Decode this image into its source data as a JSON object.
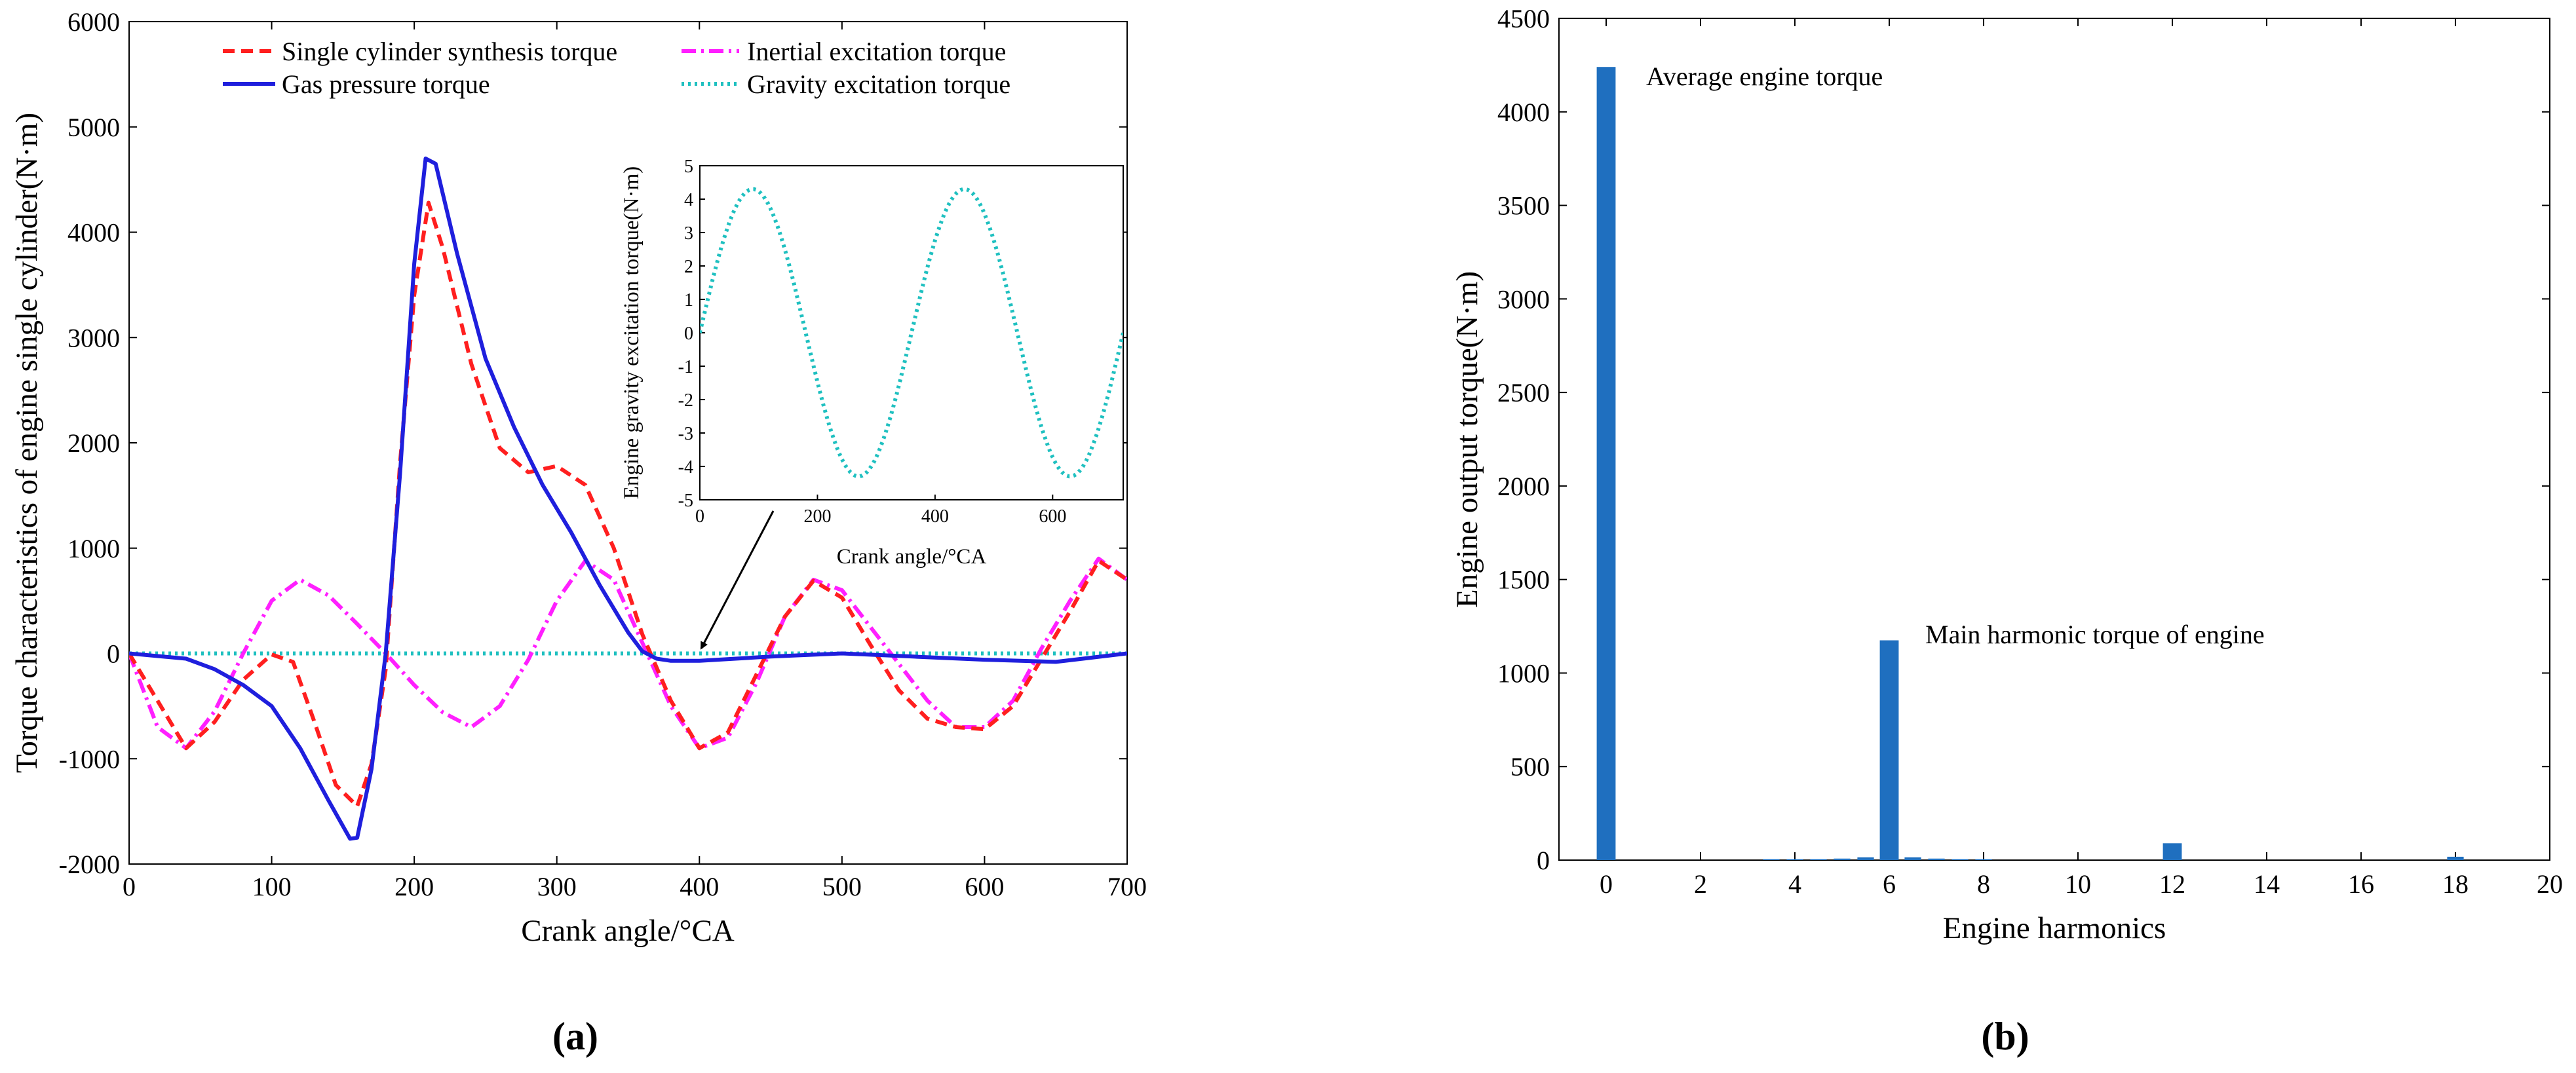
{
  "chart_data": [
    {
      "type": "line",
      "panel": "(a)",
      "xlabel": "Crank angle/°CA",
      "ylabel": "Torque characteristics of engine single cylinder(N·m)",
      "xlim": [
        0,
        700
      ],
      "ylim": [
        -2000,
        6000
      ],
      "xticks": [
        0,
        100,
        200,
        300,
        400,
        500,
        600,
        700
      ],
      "yticks": [
        -2000,
        -1000,
        0,
        1000,
        2000,
        3000,
        4000,
        5000,
        6000
      ],
      "legend": "top",
      "series": [
        {
          "name": "Single cylinder synthesis torque",
          "color": "#ff1f1f",
          "style": "dashed",
          "x": [
            0,
            20,
            40,
            60,
            80,
            100,
            115,
            130,
            145,
            160,
            170,
            180,
            190,
            200,
            210,
            220,
            240,
            260,
            280,
            300,
            320,
            340,
            360,
            380,
            400,
            420,
            440,
            460,
            480,
            500,
            520,
            540,
            560,
            580,
            600,
            620,
            640,
            660,
            680,
            700
          ],
          "values": [
            0,
            -450,
            -900,
            -650,
            -250,
            -10,
            -80,
            -650,
            -1250,
            -1450,
            -1050,
            -150,
            1800,
            3400,
            4280,
            3850,
            2750,
            1950,
            1720,
            1780,
            1600,
            1000,
            180,
            -450,
            -900,
            -750,
            -200,
            350,
            690,
            530,
            80,
            -350,
            -620,
            -700,
            -720,
            -500,
            -50,
            400,
            880,
            700
          ]
        },
        {
          "name": "Gas pressure torque",
          "color": "#1f1fdd",
          "style": "solid",
          "x": [
            0,
            40,
            60,
            80,
            100,
            120,
            140,
            155,
            160,
            170,
            180,
            190,
            200,
            208,
            215,
            230,
            250,
            270,
            290,
            310,
            330,
            350,
            360,
            370,
            380,
            400,
            450,
            500,
            550,
            600,
            650,
            700
          ],
          "values": [
            0,
            -50,
            -150,
            -300,
            -500,
            -900,
            -1400,
            -1760,
            -1750,
            -1100,
            0,
            1700,
            3700,
            4700,
            4650,
            3800,
            2800,
            2150,
            1600,
            1150,
            650,
            200,
            20,
            -50,
            -70,
            -70,
            -30,
            0,
            -30,
            -60,
            -80,
            0
          ]
        },
        {
          "name": "Inertial excitation torque",
          "color": "#ff1fff",
          "style": "dashdot",
          "x": [
            0,
            20,
            40,
            60,
            80,
            100,
            120,
            140,
            160,
            180,
            200,
            220,
            240,
            260,
            280,
            300,
            320,
            340,
            360,
            380,
            400,
            420,
            440,
            460,
            480,
            500,
            520,
            540,
            560,
            580,
            600,
            620,
            640,
            660,
            680,
            700
          ],
          "values": [
            0,
            -700,
            -900,
            -550,
            0,
            500,
            700,
            550,
            280,
            0,
            -300,
            -560,
            -700,
            -500,
            -60,
            500,
            880,
            700,
            100,
            -500,
            -900,
            -800,
            -280,
            350,
            700,
            600,
            250,
            -100,
            -450,
            -700,
            -700,
            -450,
            50,
            500,
            900,
            700
          ]
        },
        {
          "name": "Gravity excitation torque",
          "color": "#1fc0c0",
          "style": "dotted",
          "x": [
            0,
            700
          ],
          "values": [
            0,
            0
          ]
        }
      ],
      "inset": {
        "type": "line",
        "xlabel": "Crank angle/°CA",
        "ylabel": "Engine gravity excitation torque(N·m)",
        "xlim": [
          0,
          720
        ],
        "ylim": [
          -5,
          5
        ],
        "xticks": [
          0,
          200,
          400,
          600
        ],
        "yticks": [
          -5,
          -4,
          -3,
          -2,
          -1,
          0,
          1,
          2,
          3,
          4,
          5
        ],
        "series": [
          {
            "name": "Gravity excitation torque",
            "color": "#1fc0c0",
            "style": "dotted",
            "amplitude": 4.3,
            "period": 360,
            "x_start": 0,
            "x_end": 720
          }
        ]
      }
    },
    {
      "type": "bar",
      "panel": "(b)",
      "xlabel": "Engine harmonics",
      "ylabel": "Engine output torque(N·m)",
      "xlim": [
        -1,
        20
      ],
      "ylim": [
        0,
        4500
      ],
      "xticks": [
        0,
        2,
        4,
        6,
        8,
        10,
        12,
        14,
        16,
        18,
        20
      ],
      "yticks": [
        0,
        500,
        1000,
        1500,
        2000,
        2500,
        3000,
        3500,
        4000,
        4500
      ],
      "color": "#1f6fbf",
      "categories": [
        0,
        3.5,
        4,
        4.5,
        5,
        5.5,
        6,
        6.5,
        7,
        7.5,
        8,
        12,
        18
      ],
      "values": [
        4240,
        3,
        5,
        4,
        8,
        15,
        1175,
        15,
        8,
        4,
        3,
        90,
        18
      ]
    }
  ],
  "annotations": {
    "avg": "Average engine torque",
    "main": "Main harmonic torque of engine"
  },
  "labels": {
    "a": "(a)",
    "b": "(b)"
  }
}
